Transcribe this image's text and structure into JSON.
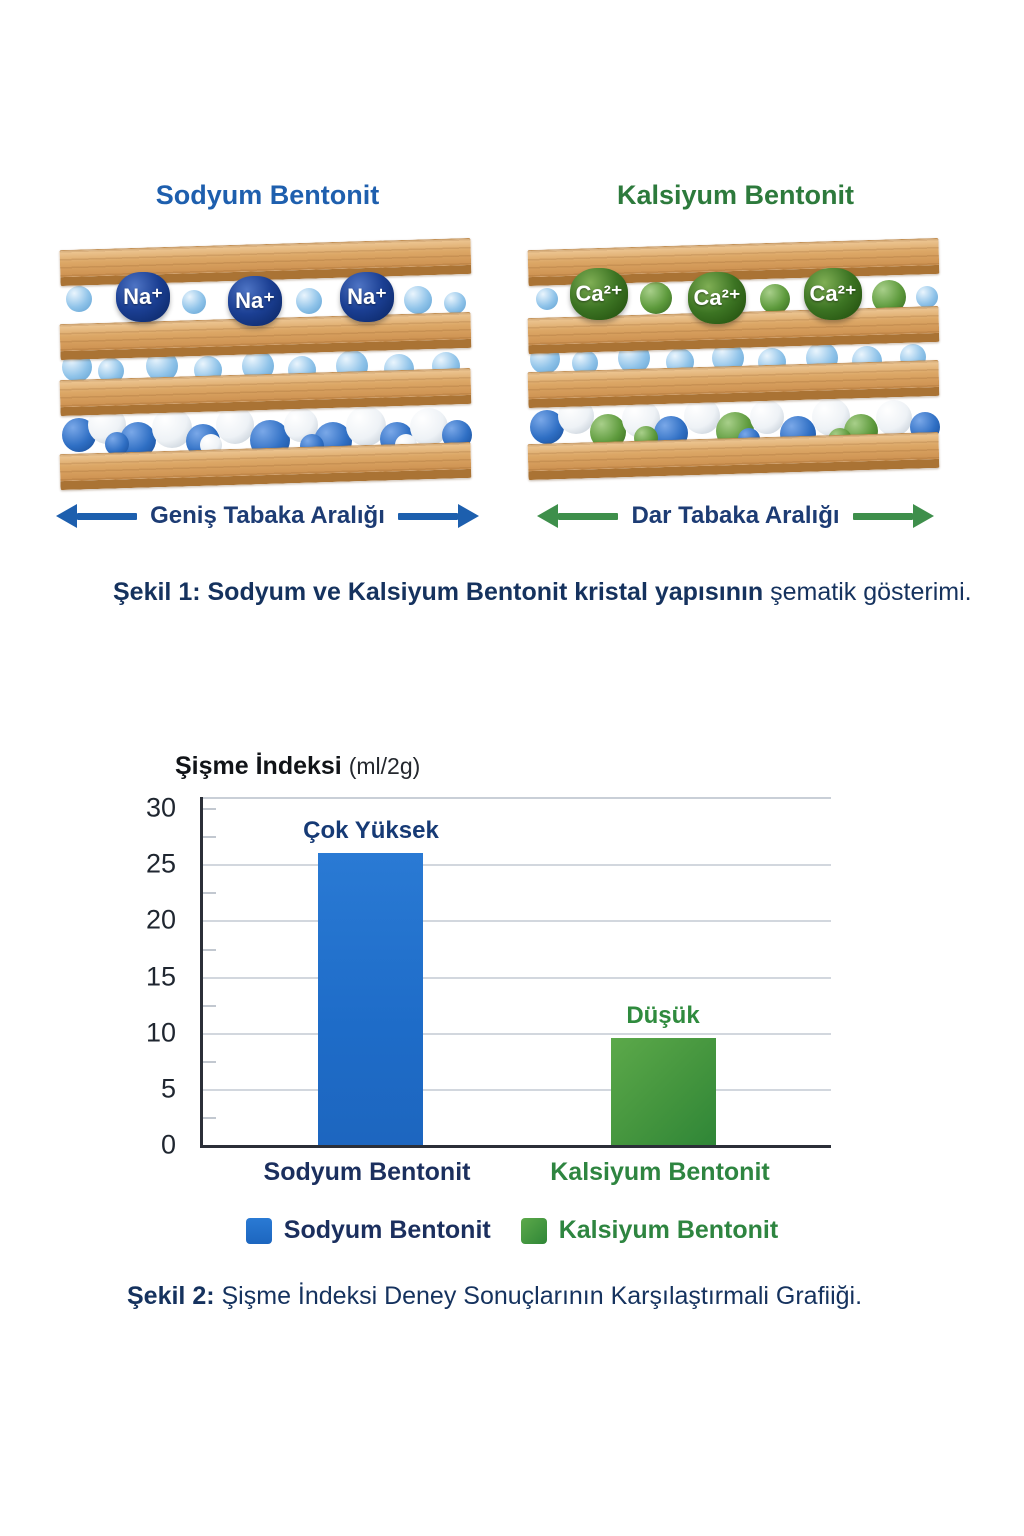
{
  "figure1": {
    "left": {
      "title": "Sodyum Bentonit",
      "ion": "Na⁺",
      "spacing_label": "Geniş Tabaka Aralığı"
    },
    "right": {
      "title": "Kalsiyum Bentonit",
      "ion": "Ca²⁺",
      "spacing_label": "Dar Tabaka Aralığı"
    },
    "caption_bold": "Şekil 1: Sodyum ve Kalsiyum Bentonit kristal yapısının",
    "caption_rest": " şematik gösterimi."
  },
  "chart_data": {
    "type": "bar",
    "title": "Şişme İndeksi",
    "unit": "(ml/2g)",
    "ylabel": "Şişme İndeksi (ml/2g)",
    "categories": [
      "Sodyum Bentonit",
      "Kalsiyum Bentonit"
    ],
    "values": [
      26,
      9.5
    ],
    "bar_labels": [
      "Çok Yüksek",
      "Düşük"
    ],
    "legend": [
      "Sodyum Bentonit",
      "Kalsiyum Bentonit"
    ],
    "colors": [
      "#1f72cf",
      "#3f9a3e"
    ],
    "yticks": [
      30,
      25,
      20,
      15,
      10,
      5,
      0
    ],
    "ylim": [
      0,
      30
    ],
    "axis_max": 31,
    "grid": "horizontal major gridlines, minor ticks every 2.5",
    "legend_position": "bottom"
  },
  "figure2": {
    "caption_bold": "Şekil 2:",
    "caption_rest": " Şişme İndeksi Deney Sonuçlarının Karşılaştırmali Grafiiği."
  },
  "palette": {
    "title_blue": "#1e5fae",
    "title_green": "#2d7a3c",
    "caption_navy": "#15325e",
    "arrow_blue": "#1d5fae",
    "arrow_green": "#3e8f4b"
  }
}
